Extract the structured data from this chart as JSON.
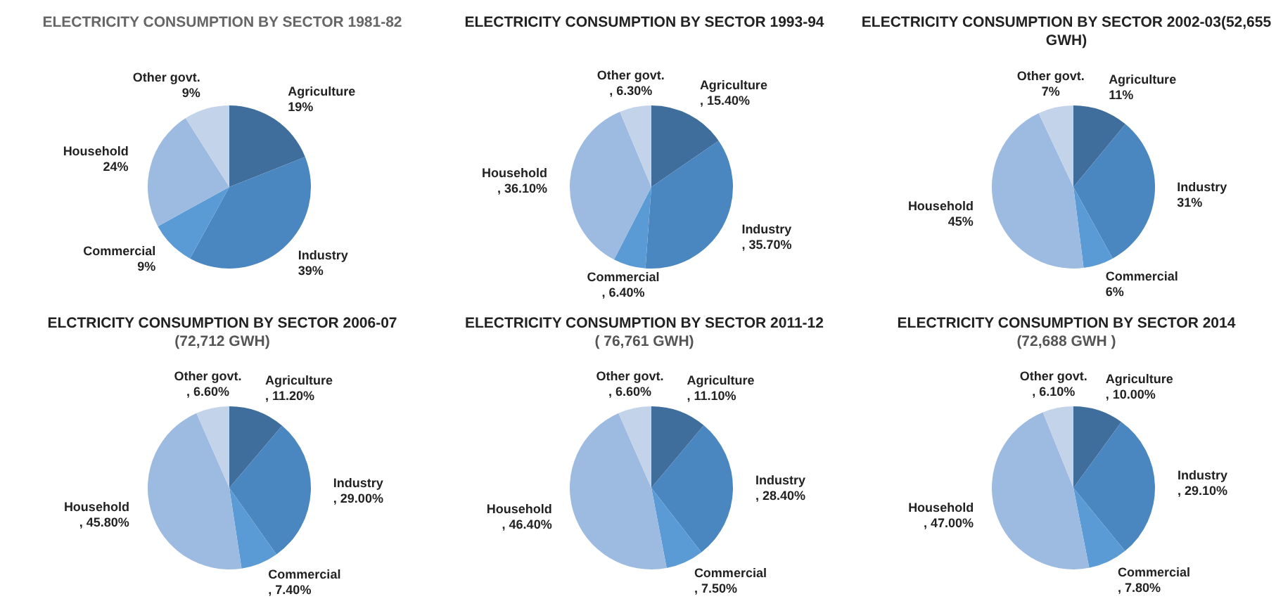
{
  "chart_data": [
    {
      "type": "pie",
      "title": "ELECTRICITY CONSUMPTION BY SECTOR 1981-82",
      "categories": [
        "Agriculture",
        "Industry",
        "Commercial",
        "Household",
        "Other govt."
      ],
      "values": [
        19,
        39,
        9,
        24,
        9
      ],
      "value_labels": [
        "19%",
        "39%",
        "9%",
        "24%",
        "9%"
      ],
      "colors": [
        "#3f6e9d",
        "#4a86bf",
        "#5b9bd5",
        "#9dbbe1",
        "#c3d4ea"
      ]
    },
    {
      "type": "pie",
      "title": "ELECTRICITY CONSUMPTION BY SECTOR 1993-94",
      "categories": [
        "Agriculture",
        "Industry",
        "Commercial",
        "Household",
        "Other govt."
      ],
      "values": [
        15.4,
        35.7,
        6.4,
        36.1,
        6.3
      ],
      "value_labels": [
        ", 15.40%",
        ", 35.70%",
        ", 6.40%",
        ", 36.10%",
        ", 6.30%"
      ],
      "colors": [
        "#3f6e9d",
        "#4a86bf",
        "#5b9bd5",
        "#9dbbe1",
        "#c3d4ea"
      ]
    },
    {
      "type": "pie",
      "title": "ELECTRICITY CONSUMPTION BY SECTOR 2002-03(52,655 GWH)",
      "categories": [
        "Agriculture",
        "Industry",
        "Commercial",
        "Household",
        "Other govt."
      ],
      "values": [
        11,
        31,
        6,
        45,
        7
      ],
      "value_labels": [
        "11%",
        "31%",
        "6%",
        "45%",
        "7%"
      ],
      "colors": [
        "#3f6e9d",
        "#4a86bf",
        "#5b9bd5",
        "#9dbbe1",
        "#c3d4ea"
      ]
    },
    {
      "type": "pie",
      "title": "ELCTRICITY CONSUMPTION BY SECTOR 2006-07",
      "subtitle": "(72,712 GWH)",
      "categories": [
        "Agriculture",
        "Industry",
        "Commercial",
        "Household",
        "Other govt."
      ],
      "values": [
        11.2,
        29,
        7.4,
        45.8,
        6.6
      ],
      "value_labels": [
        ", 11.20%",
        ", 29.00%",
        ", 7.40%",
        ", 45.80%",
        ", 6.60%"
      ],
      "colors": [
        "#3f6e9d",
        "#4a86bf",
        "#5b9bd5",
        "#9dbbe1",
        "#c3d4ea"
      ]
    },
    {
      "type": "pie",
      "title": "ELECTRICITY CONSUMPTION BY SECTOR 2011-12",
      "subtitle": "( 76,761 GWH)",
      "categories": [
        "Agriculture",
        "Industry",
        "Commercial",
        "Household",
        "Other govt."
      ],
      "values": [
        11.1,
        28.4,
        7.5,
        46.4,
        6.6
      ],
      "value_labels": [
        ", 11.10%",
        ", 28.40%",
        ", 7.50%",
        ", 46.40%",
        ", 6.60%"
      ],
      "colors": [
        "#3f6e9d",
        "#4a86bf",
        "#5b9bd5",
        "#9dbbe1",
        "#c3d4ea"
      ]
    },
    {
      "type": "pie",
      "title": "ELECTRICITY CONSUMPTION BY SECTOR 2014",
      "subtitle": "(72,688 GWH )",
      "categories": [
        "Agriculture",
        "Industry",
        "Commercial",
        "Household",
        "Other govt."
      ],
      "values": [
        10,
        29.1,
        7.8,
        47,
        6.1
      ],
      "value_labels": [
        ", 10.00%",
        ", 29.10%",
        ", 7.80%",
        ", 47.00%",
        ", 6.10%"
      ],
      "colors": [
        "#3f6e9d",
        "#4a86bf",
        "#5b9bd5",
        "#9dbbe1",
        "#c3d4ea"
      ]
    }
  ]
}
